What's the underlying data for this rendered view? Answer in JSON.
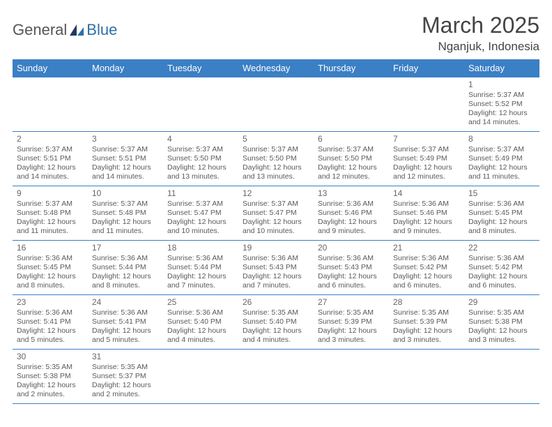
{
  "logo": {
    "text1": "General",
    "text2": "Blue"
  },
  "title": "March 2025",
  "location": "Nganjuk, Indonesia",
  "colors": {
    "header_bg": "#3b7fc4",
    "header_fg": "#ffffff",
    "border": "#3b7fc4",
    "text": "#5a5a5a",
    "logo_accent": "#2f6fa8"
  },
  "day_headers": [
    "Sunday",
    "Monday",
    "Tuesday",
    "Wednesday",
    "Thursday",
    "Friday",
    "Saturday"
  ],
  "weeks": [
    [
      null,
      null,
      null,
      null,
      null,
      null,
      {
        "n": "1",
        "sr": "Sunrise: 5:37 AM",
        "ss": "Sunset: 5:52 PM",
        "d1": "Daylight: 12 hours",
        "d2": "and 14 minutes."
      }
    ],
    [
      {
        "n": "2",
        "sr": "Sunrise: 5:37 AM",
        "ss": "Sunset: 5:51 PM",
        "d1": "Daylight: 12 hours",
        "d2": "and 14 minutes."
      },
      {
        "n": "3",
        "sr": "Sunrise: 5:37 AM",
        "ss": "Sunset: 5:51 PM",
        "d1": "Daylight: 12 hours",
        "d2": "and 14 minutes."
      },
      {
        "n": "4",
        "sr": "Sunrise: 5:37 AM",
        "ss": "Sunset: 5:50 PM",
        "d1": "Daylight: 12 hours",
        "d2": "and 13 minutes."
      },
      {
        "n": "5",
        "sr": "Sunrise: 5:37 AM",
        "ss": "Sunset: 5:50 PM",
        "d1": "Daylight: 12 hours",
        "d2": "and 13 minutes."
      },
      {
        "n": "6",
        "sr": "Sunrise: 5:37 AM",
        "ss": "Sunset: 5:50 PM",
        "d1": "Daylight: 12 hours",
        "d2": "and 12 minutes."
      },
      {
        "n": "7",
        "sr": "Sunrise: 5:37 AM",
        "ss": "Sunset: 5:49 PM",
        "d1": "Daylight: 12 hours",
        "d2": "and 12 minutes."
      },
      {
        "n": "8",
        "sr": "Sunrise: 5:37 AM",
        "ss": "Sunset: 5:49 PM",
        "d1": "Daylight: 12 hours",
        "d2": "and 11 minutes."
      }
    ],
    [
      {
        "n": "9",
        "sr": "Sunrise: 5:37 AM",
        "ss": "Sunset: 5:48 PM",
        "d1": "Daylight: 12 hours",
        "d2": "and 11 minutes."
      },
      {
        "n": "10",
        "sr": "Sunrise: 5:37 AM",
        "ss": "Sunset: 5:48 PM",
        "d1": "Daylight: 12 hours",
        "d2": "and 11 minutes."
      },
      {
        "n": "11",
        "sr": "Sunrise: 5:37 AM",
        "ss": "Sunset: 5:47 PM",
        "d1": "Daylight: 12 hours",
        "d2": "and 10 minutes."
      },
      {
        "n": "12",
        "sr": "Sunrise: 5:37 AM",
        "ss": "Sunset: 5:47 PM",
        "d1": "Daylight: 12 hours",
        "d2": "and 10 minutes."
      },
      {
        "n": "13",
        "sr": "Sunrise: 5:36 AM",
        "ss": "Sunset: 5:46 PM",
        "d1": "Daylight: 12 hours",
        "d2": "and 9 minutes."
      },
      {
        "n": "14",
        "sr": "Sunrise: 5:36 AM",
        "ss": "Sunset: 5:46 PM",
        "d1": "Daylight: 12 hours",
        "d2": "and 9 minutes."
      },
      {
        "n": "15",
        "sr": "Sunrise: 5:36 AM",
        "ss": "Sunset: 5:45 PM",
        "d1": "Daylight: 12 hours",
        "d2": "and 8 minutes."
      }
    ],
    [
      {
        "n": "16",
        "sr": "Sunrise: 5:36 AM",
        "ss": "Sunset: 5:45 PM",
        "d1": "Daylight: 12 hours",
        "d2": "and 8 minutes."
      },
      {
        "n": "17",
        "sr": "Sunrise: 5:36 AM",
        "ss": "Sunset: 5:44 PM",
        "d1": "Daylight: 12 hours",
        "d2": "and 8 minutes."
      },
      {
        "n": "18",
        "sr": "Sunrise: 5:36 AM",
        "ss": "Sunset: 5:44 PM",
        "d1": "Daylight: 12 hours",
        "d2": "and 7 minutes."
      },
      {
        "n": "19",
        "sr": "Sunrise: 5:36 AM",
        "ss": "Sunset: 5:43 PM",
        "d1": "Daylight: 12 hours",
        "d2": "and 7 minutes."
      },
      {
        "n": "20",
        "sr": "Sunrise: 5:36 AM",
        "ss": "Sunset: 5:43 PM",
        "d1": "Daylight: 12 hours",
        "d2": "and 6 minutes."
      },
      {
        "n": "21",
        "sr": "Sunrise: 5:36 AM",
        "ss": "Sunset: 5:42 PM",
        "d1": "Daylight: 12 hours",
        "d2": "and 6 minutes."
      },
      {
        "n": "22",
        "sr": "Sunrise: 5:36 AM",
        "ss": "Sunset: 5:42 PM",
        "d1": "Daylight: 12 hours",
        "d2": "and 6 minutes."
      }
    ],
    [
      {
        "n": "23",
        "sr": "Sunrise: 5:36 AM",
        "ss": "Sunset: 5:41 PM",
        "d1": "Daylight: 12 hours",
        "d2": "and 5 minutes."
      },
      {
        "n": "24",
        "sr": "Sunrise: 5:36 AM",
        "ss": "Sunset: 5:41 PM",
        "d1": "Daylight: 12 hours",
        "d2": "and 5 minutes."
      },
      {
        "n": "25",
        "sr": "Sunrise: 5:36 AM",
        "ss": "Sunset: 5:40 PM",
        "d1": "Daylight: 12 hours",
        "d2": "and 4 minutes."
      },
      {
        "n": "26",
        "sr": "Sunrise: 5:35 AM",
        "ss": "Sunset: 5:40 PM",
        "d1": "Daylight: 12 hours",
        "d2": "and 4 minutes."
      },
      {
        "n": "27",
        "sr": "Sunrise: 5:35 AM",
        "ss": "Sunset: 5:39 PM",
        "d1": "Daylight: 12 hours",
        "d2": "and 3 minutes."
      },
      {
        "n": "28",
        "sr": "Sunrise: 5:35 AM",
        "ss": "Sunset: 5:39 PM",
        "d1": "Daylight: 12 hours",
        "d2": "and 3 minutes."
      },
      {
        "n": "29",
        "sr": "Sunrise: 5:35 AM",
        "ss": "Sunset: 5:38 PM",
        "d1": "Daylight: 12 hours",
        "d2": "and 3 minutes."
      }
    ],
    [
      {
        "n": "30",
        "sr": "Sunrise: 5:35 AM",
        "ss": "Sunset: 5:38 PM",
        "d1": "Daylight: 12 hours",
        "d2": "and 2 minutes."
      },
      {
        "n": "31",
        "sr": "Sunrise: 5:35 AM",
        "ss": "Sunset: 5:37 PM",
        "d1": "Daylight: 12 hours",
        "d2": "and 2 minutes."
      },
      null,
      null,
      null,
      null,
      null
    ]
  ]
}
